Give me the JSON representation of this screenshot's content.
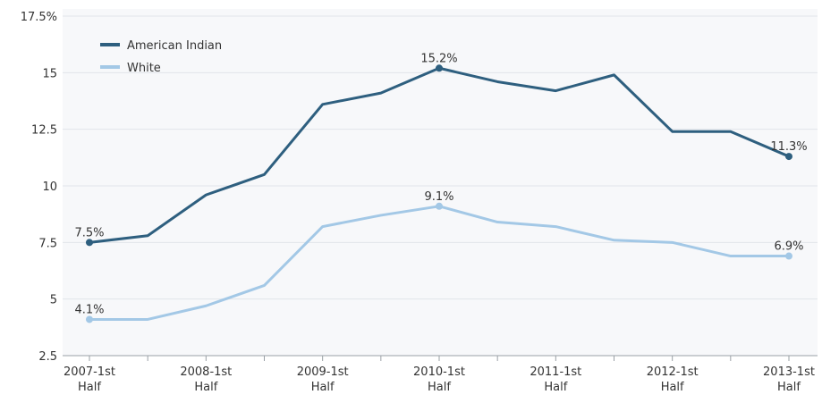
{
  "chart_data": {
    "type": "line",
    "x": [
      "2007-1st Half",
      "2007-2nd Half",
      "2008-1st Half",
      "2008-2nd Half",
      "2009-1st Half",
      "2009-2nd Half",
      "2010-1st Half",
      "2010-2nd Half",
      "2011-1st Half",
      "2011-2nd Half",
      "2012-1st Half",
      "2012-2nd Half",
      "2013-1st Half"
    ],
    "x_tick_labels": [
      {
        "index": 0,
        "lines": [
          "2007-1st",
          "Half"
        ]
      },
      {
        "index": 2,
        "lines": [
          "2008-1st",
          "Half"
        ]
      },
      {
        "index": 4,
        "lines": [
          "2009-1st",
          "Half"
        ]
      },
      {
        "index": 6,
        "lines": [
          "2010-1st",
          "Half"
        ]
      },
      {
        "index": 8,
        "lines": [
          "2011-1st",
          "Half"
        ]
      },
      {
        "index": 10,
        "lines": [
          "2012-1st",
          "Half"
        ]
      },
      {
        "index": 12,
        "lines": [
          "2013-1st",
          "Half"
        ]
      }
    ],
    "y_ticks": [
      {
        "value": 2.5,
        "label": "2.5"
      },
      {
        "value": 5,
        "label": "5"
      },
      {
        "value": 7.5,
        "label": "7.5"
      },
      {
        "value": 10,
        "label": "10"
      },
      {
        "value": 12.5,
        "label": "12.5"
      },
      {
        "value": 15,
        "label": "15"
      },
      {
        "value": 17.5,
        "label": "17.5%"
      }
    ],
    "ylim": [
      2.5,
      17.5
    ],
    "grid": "horizontal",
    "legend_position": "top-left",
    "series": [
      {
        "name": "American Indian",
        "color": "#2e5f7f",
        "values": [
          7.5,
          7.8,
          9.6,
          10.5,
          13.6,
          14.1,
          15.2,
          14.6,
          14.2,
          14.9,
          12.4,
          12.4,
          11.3
        ],
        "data_labels": [
          {
            "index": 0,
            "text": "7.5%"
          },
          {
            "index": 6,
            "text": "15.2%"
          },
          {
            "index": 12,
            "text": "11.3%"
          }
        ]
      },
      {
        "name": "White",
        "color": "#a3c8e6",
        "values": [
          4.1,
          4.1,
          4.7,
          5.6,
          8.2,
          8.7,
          9.1,
          8.4,
          8.2,
          7.6,
          7.5,
          6.9,
          6.9
        ],
        "data_labels": [
          {
            "index": 0,
            "text": "4.1%"
          },
          {
            "index": 6,
            "text": "9.1%"
          },
          {
            "index": 12,
            "text": "6.9%"
          }
        ]
      }
    ]
  }
}
